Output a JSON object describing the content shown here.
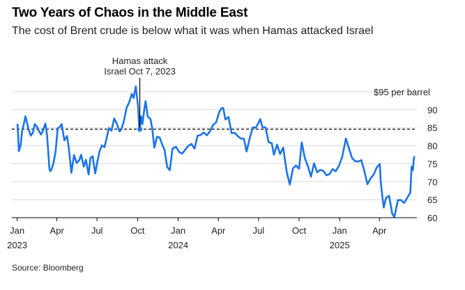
{
  "title": "Two Years of Chaos in the Middle East",
  "subtitle": "The cost of Brent crude is below what it was when Hamas attacked Israel",
  "source": "Source: Bloomberg",
  "colors": {
    "line": "#1a73e8",
    "reference": "#000000",
    "grid": "#d9d9d9",
    "text": "#222222"
  },
  "chart_data": {
    "type": "line",
    "series": [
      {
        "x": [
          "2023-01-02",
          "2023-01-05",
          "2023-01-09",
          "2023-01-12",
          "2023-01-17",
          "2023-01-20",
          "2023-01-24",
          "2023-01-27",
          "2023-02-01",
          "2023-02-06",
          "2023-02-10",
          "2023-02-15",
          "2023-02-20",
          "2023-02-24",
          "2023-03-01",
          "2023-03-06",
          "2023-03-10",
          "2023-03-15",
          "2023-03-17",
          "2023-03-20",
          "2023-03-24",
          "2023-03-29",
          "2023-04-03",
          "2023-04-07",
          "2023-04-12",
          "2023-04-18",
          "2023-04-24",
          "2023-04-28",
          "2023-05-04",
          "2023-05-10",
          "2023-05-16",
          "2023-05-22",
          "2023-05-26",
          "2023-06-01",
          "2023-06-06",
          "2023-06-12",
          "2023-06-16",
          "2023-06-21",
          "2023-06-27",
          "2023-07-03",
          "2023-07-07",
          "2023-07-12",
          "2023-07-18",
          "2023-07-24",
          "2023-07-28",
          "2023-08-03",
          "2023-08-09",
          "2023-08-15",
          "2023-08-21",
          "2023-08-25",
          "2023-08-31",
          "2023-09-06",
          "2023-09-12",
          "2023-09-18",
          "2023-09-22",
          "2023-09-27",
          "2023-10-02",
          "2023-10-05",
          "2023-10-06",
          "2023-10-09",
          "2023-10-12",
          "2023-10-16",
          "2023-10-19",
          "2023-10-24",
          "2023-10-30",
          "2023-11-03",
          "2023-11-08",
          "2023-11-14",
          "2023-11-20",
          "2023-11-27",
          "2023-12-01",
          "2023-12-07",
          "2023-12-13",
          "2023-12-19",
          "2023-12-27",
          "2024-01-03",
          "2024-01-10",
          "2024-01-17",
          "2024-01-24",
          "2024-01-31",
          "2024-02-07",
          "2024-02-14",
          "2024-02-21",
          "2024-02-28",
          "2024-03-06",
          "2024-03-13",
          "2024-03-20",
          "2024-03-27",
          "2024-04-03",
          "2024-04-08",
          "2024-04-12",
          "2024-04-17",
          "2024-04-24",
          "2024-05-01",
          "2024-05-08",
          "2024-05-15",
          "2024-05-22",
          "2024-05-29",
          "2024-06-04",
          "2024-06-11",
          "2024-06-18",
          "2024-06-25",
          "2024-07-02",
          "2024-07-05",
          "2024-07-10",
          "2024-07-17",
          "2024-07-24",
          "2024-07-31",
          "2024-08-05",
          "2024-08-12",
          "2024-08-19",
          "2024-08-26",
          "2024-09-03",
          "2024-09-10",
          "2024-09-17",
          "2024-09-24",
          "2024-10-01",
          "2024-10-07",
          "2024-10-14",
          "2024-10-21",
          "2024-10-28",
          "2024-11-04",
          "2024-11-11",
          "2024-11-18",
          "2024-11-25",
          "2024-12-02",
          "2024-12-09",
          "2024-12-16",
          "2024-12-23",
          "2024-12-31",
          "2025-01-07",
          "2025-01-15",
          "2025-01-22",
          "2025-01-29",
          "2025-02-05",
          "2025-02-12",
          "2025-02-19",
          "2025-02-26",
          "2025-03-05",
          "2025-03-12",
          "2025-03-19",
          "2025-03-26",
          "2025-04-02",
          "2025-04-04",
          "2025-04-08",
          "2025-04-11",
          "2025-04-16",
          "2025-04-23",
          "2025-04-30",
          "2025-05-05",
          "2025-05-08",
          "2025-05-13",
          "2025-05-20",
          "2025-05-27",
          "2025-06-03",
          "2025-06-10",
          "2025-06-13",
          "2025-06-16",
          "2025-06-18",
          "2025-06-19"
        ],
        "y": [
          85.9,
          78.5,
          80.2,
          84.0,
          86.5,
          88.2,
          86.0,
          84.5,
          82.8,
          83.7,
          86.0,
          85.3,
          84.0,
          83.1,
          84.3,
          86.2,
          82.8,
          73.7,
          72.9,
          73.5,
          75.0,
          78.3,
          84.9,
          85.1,
          86.0,
          81.5,
          82.7,
          79.5,
          72.5,
          77.4,
          75.2,
          76.0,
          77.5,
          74.2,
          76.1,
          72.0,
          76.6,
          77.1,
          72.3,
          76.3,
          78.5,
          80.1,
          79.6,
          82.7,
          84.9,
          84.2,
          87.6,
          86.1,
          84.0,
          84.5,
          86.9,
          90.6,
          92.1,
          94.4,
          93.3,
          96.5,
          91.0,
          84.1,
          84.6,
          88.2,
          86.0,
          90.0,
          92.4,
          88.1,
          87.5,
          84.9,
          79.5,
          82.5,
          82.3,
          79.9,
          78.9,
          74.1,
          73.2,
          79.2,
          79.7,
          78.3,
          77.8,
          78.9,
          80.0,
          80.5,
          79.2,
          82.8,
          83.0,
          83.7,
          82.9,
          84.0,
          85.8,
          86.5,
          89.4,
          90.4,
          90.5,
          87.3,
          88.0,
          83.5,
          83.6,
          82.7,
          82.0,
          81.9,
          78.4,
          82.0,
          85.1,
          85.0,
          86.6,
          87.4,
          85.1,
          85.1,
          81.0,
          80.7,
          77.5,
          80.3,
          77.7,
          79.5,
          72.7,
          69.2,
          73.7,
          74.5,
          73.6,
          80.9,
          76.6,
          74.3,
          71.4,
          75.1,
          72.6,
          73.3,
          73.0,
          71.8,
          72.1,
          73.5,
          72.9,
          74.6,
          77.0,
          82.0,
          79.3,
          76.6,
          75.7,
          75.6,
          76.0,
          72.9,
          69.3,
          70.9,
          72.0,
          74.0,
          74.9,
          70.1,
          65.6,
          62.8,
          65.5,
          66.1,
          61.1,
          60.2,
          62.0,
          64.9,
          64.9,
          64.1,
          65.5,
          66.9,
          74.2,
          73.2,
          76.5,
          76.9
        ],
        "name": ""
      }
    ],
    "ylim": [
      60,
      95
    ],
    "yticks": [
      60,
      65,
      70,
      75,
      80,
      85,
      90
    ],
    "y_top_label": "$95 per barrel",
    "x_range": [
      "2022-12-20",
      "2025-06-25"
    ],
    "xticks": [
      {
        "date": "2023-01-01",
        "label": "Jan",
        "year": "2023"
      },
      {
        "date": "2023-04-01",
        "label": "Apr",
        "year": ""
      },
      {
        "date": "2023-07-01",
        "label": "Jul",
        "year": ""
      },
      {
        "date": "2023-10-01",
        "label": "Oct",
        "year": ""
      },
      {
        "date": "2024-01-01",
        "label": "Jan",
        "year": "2024"
      },
      {
        "date": "2024-04-01",
        "label": "Apr",
        "year": ""
      },
      {
        "date": "2024-07-01",
        "label": "Jul",
        "year": ""
      },
      {
        "date": "2024-10-01",
        "label": "Oct",
        "year": ""
      },
      {
        "date": "2025-01-01",
        "label": "Jan",
        "year": "2025"
      },
      {
        "date": "2025-04-01",
        "label": "Apr",
        "year": ""
      }
    ],
    "reference_line": 84.6,
    "annotation": {
      "line1": "Hamas attack",
      "line2": "Israel Oct 7, 2023",
      "date": "2023-10-06",
      "value": 84.6
    },
    "grid": true
  }
}
